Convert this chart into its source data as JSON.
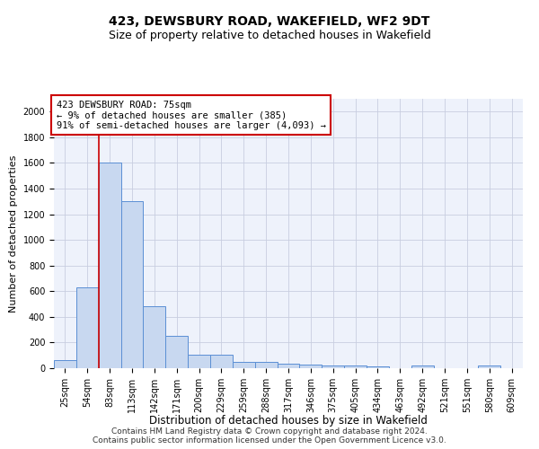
{
  "title": "423, DEWSBURY ROAD, WAKEFIELD, WF2 9DT",
  "subtitle": "Size of property relative to detached houses in Wakefield",
  "xlabel": "Distribution of detached houses by size in Wakefield",
  "ylabel": "Number of detached properties",
  "categories": [
    "25sqm",
    "54sqm",
    "83sqm",
    "113sqm",
    "142sqm",
    "171sqm",
    "200sqm",
    "229sqm",
    "259sqm",
    "288sqm",
    "317sqm",
    "346sqm",
    "375sqm",
    "405sqm",
    "434sqm",
    "463sqm",
    "492sqm",
    "521sqm",
    "551sqm",
    "580sqm",
    "609sqm"
  ],
  "values": [
    60,
    630,
    1600,
    1300,
    480,
    250,
    105,
    105,
    50,
    50,
    35,
    25,
    20,
    20,
    15,
    0,
    20,
    0,
    0,
    20,
    0
  ],
  "bar_color": "#c8d8f0",
  "bar_edge_color": "#5b8fd4",
  "ylim": [
    0,
    2100
  ],
  "yticks": [
    0,
    200,
    400,
    600,
    800,
    1000,
    1200,
    1400,
    1600,
    1800,
    2000
  ],
  "red_line_x": 1.5,
  "annotation_text": "423 DEWSBURY ROAD: 75sqm\n← 9% of detached houses are smaller (385)\n91% of semi-detached houses are larger (4,093) →",
  "annotation_box_color": "#ffffff",
  "annotation_box_edge": "#cc0000",
  "bg_color": "#eef2fb",
  "grid_color": "#c8cee0",
  "footer_text": "Contains HM Land Registry data © Crown copyright and database right 2024.\nContains public sector information licensed under the Open Government Licence v3.0.",
  "title_fontsize": 10,
  "subtitle_fontsize": 9,
  "xlabel_fontsize": 8.5,
  "ylabel_fontsize": 8,
  "tick_fontsize": 7,
  "annotation_fontsize": 7.5,
  "footer_fontsize": 6.5
}
